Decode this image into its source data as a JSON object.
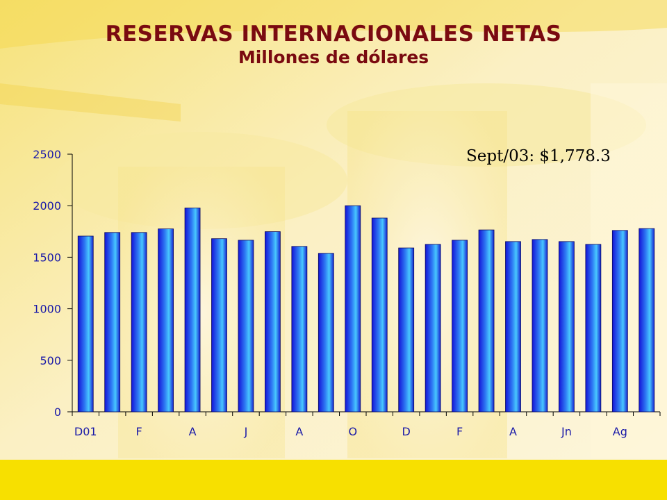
{
  "page": {
    "title": "RESERVAS INTERNACIONALES NETAS",
    "subtitle": "Millones de dólares",
    "annotation": "Sept/03: $1,778.3"
  },
  "colors": {
    "title": "#7a0a10",
    "background": "#fbf3cf",
    "footer_band": "#f7e000",
    "bar_dark": "#1414d8",
    "bar_light": "#48c8ff",
    "axis_text": "#1a1aa8"
  },
  "chart_data": {
    "type": "bar",
    "title": "RESERVAS INTERNACIONALES NETAS",
    "subtitle": "Millones de dólares",
    "xlabel": "",
    "ylabel": "",
    "ylim": [
      0,
      2500
    ],
    "yticks": [
      0,
      500,
      1000,
      1500,
      2000,
      2500
    ],
    "x_tick_labels": [
      "D01",
      "",
      "F",
      "",
      "A",
      "",
      "J",
      "",
      "A",
      "",
      "O",
      "",
      "D",
      "",
      "F",
      "",
      "A",
      "",
      "Jn",
      "",
      "Ag",
      ""
    ],
    "values": [
      1705,
      1740,
      1740,
      1775,
      1978,
      1680,
      1665,
      1748,
      1605,
      1538,
      2000,
      1880,
      1590,
      1625,
      1665,
      1765,
      1652,
      1672,
      1652,
      1625,
      1760,
      1778.3
    ],
    "grid": false,
    "legend": "none"
  }
}
